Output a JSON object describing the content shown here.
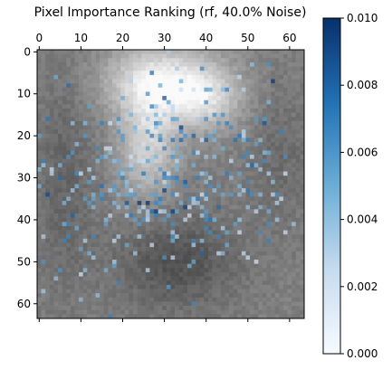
{
  "chart_data": {
    "type": "heatmap",
    "title": "Pixel Importance Ranking (rf, 40.0% Noise)",
    "image_size": [
      64,
      64
    ],
    "x_ticks": [
      0,
      10,
      20,
      30,
      40,
      50,
      60
    ],
    "y_ticks": [
      0,
      10,
      20,
      30,
      40,
      50,
      60
    ],
    "x_axis_position": "top",
    "colorbar": {
      "colormap": "Blues",
      "range": [
        0.0,
        0.01
      ],
      "ticks": [
        "0.000",
        "0.002",
        "0.004",
        "0.006",
        "0.008",
        "0.010"
      ],
      "placement": "right"
    },
    "background": "grayscale face image with 40% noise",
    "importance_overlay": "sparse blue pixels concentrated around the eye region (rows 15-45, columns 10-60), highest near (22, 28) and (48, 33)"
  },
  "colors": {
    "cmap_low": "#f7fbff",
    "cmap_mid": "#6baed6",
    "cmap_high": "#08306b"
  }
}
